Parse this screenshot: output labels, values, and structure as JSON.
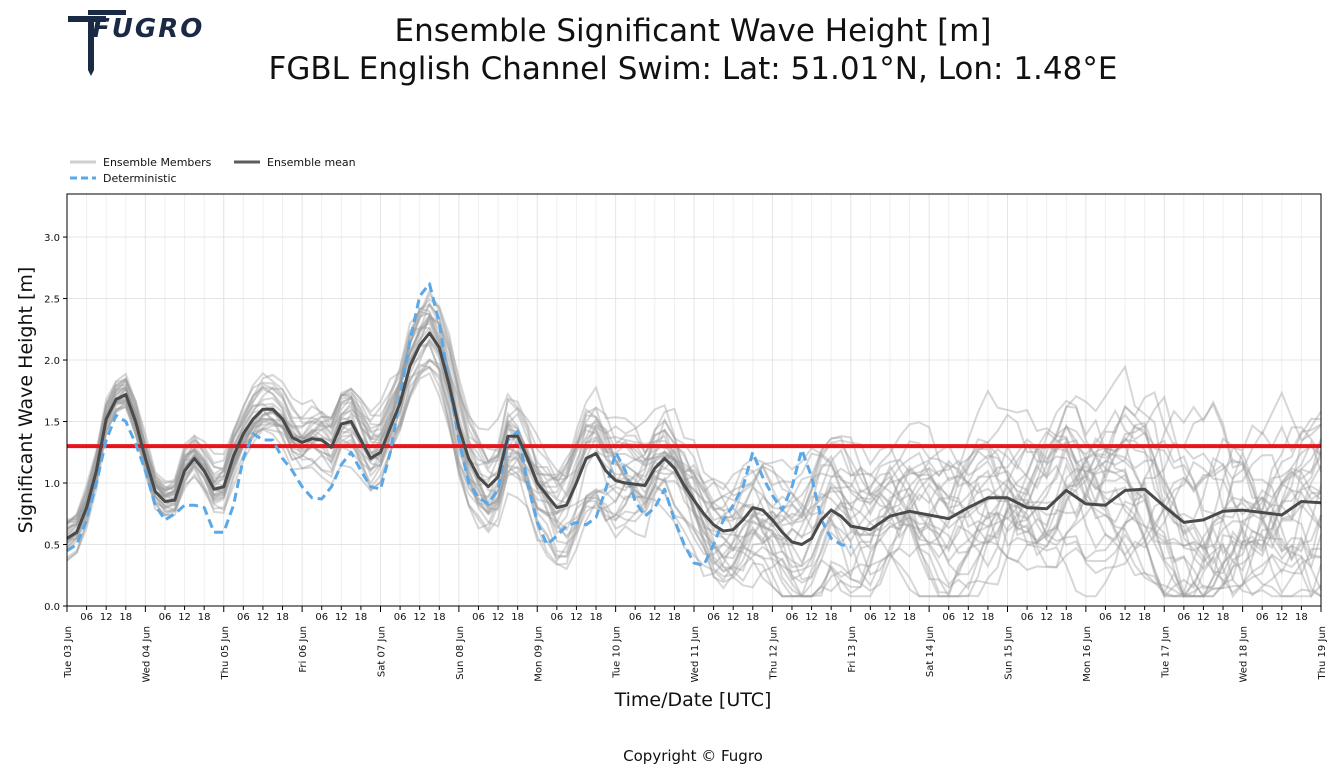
{
  "header": {
    "logo_text": "FUGRO",
    "title_line1": "Ensemble Significant Wave Height [m]",
    "title_line2": "FGBL English Channel Swim: Lat: 51.01°N, Lon: 1.48°E"
  },
  "footer": {
    "copyright": "Copyright © Fugro"
  },
  "colors": {
    "members": "#bdbdbd",
    "mean": "#4a4a4a",
    "deterministic": "#5aa8e8",
    "threshold": "#e8131b",
    "logo": "#1a2a44"
  },
  "chart_data": {
    "type": "line",
    "xlabel": "Time/Date [UTC]",
    "ylabel": "Significant Wave Height [m]",
    "ylim": [
      0,
      3.35
    ],
    "xlim_days": [
      0,
      16
    ],
    "y_ticks": [
      "0.0",
      "0.5",
      "1.0",
      "1.5",
      "2.0",
      "2.5",
      "3.0"
    ],
    "hour_ticks": [
      "06",
      "12",
      "18"
    ],
    "day_labels": [
      "Tue 03 Jun",
      "Wed 04 Jun",
      "Thu 05 Jun",
      "Fri 06 Jun",
      "Sat 07 Jun",
      "Sun 08 Jun",
      "Mon 09 Jun",
      "Tue 10 Jun",
      "Wed 11 Jun",
      "Thu 12 Jun",
      "Fri 13 Jun",
      "Sat 14 Jun",
      "Sun 15 Jun",
      "Mon 16 Jun",
      "Tue 17 Jun",
      "Wed 18 Jun",
      "Thu 19 Jun"
    ],
    "legend": {
      "placement": "top-left-outside",
      "members_label": "Ensemble Members",
      "mean_label": "Ensemble mean",
      "deterministic_label": "Deterministic"
    },
    "threshold": {
      "value": 1.3
    },
    "grid": true,
    "member_count": 30,
    "series": [
      {
        "name": "Ensemble mean",
        "x": [
          0,
          0.125,
          0.25,
          0.375,
          0.5,
          0.625,
          0.75,
          0.875,
          1.0,
          1.125,
          1.25,
          1.375,
          1.5,
          1.625,
          1.75,
          1.875,
          2.0,
          2.125,
          2.25,
          2.375,
          2.5,
          2.625,
          2.75,
          2.875,
          3.0,
          3.125,
          3.25,
          3.375,
          3.5,
          3.625,
          3.75,
          3.875,
          4.0,
          4.125,
          4.25,
          4.375,
          4.5,
          4.625,
          4.75,
          4.875,
          5.0,
          5.125,
          5.25,
          5.375,
          5.5,
          5.625,
          5.75,
          5.875,
          6.0,
          6.125,
          6.25,
          6.375,
          6.5,
          6.625,
          6.75,
          6.875,
          7.0,
          7.125,
          7.25,
          7.375,
          7.5,
          7.625,
          7.75,
          7.875,
          8.0,
          8.125,
          8.25,
          8.375,
          8.5,
          8.625,
          8.75,
          8.875,
          9.0,
          9.125,
          9.25,
          9.375,
          9.5,
          9.625,
          9.75,
          9.875,
          10.0,
          10.25,
          10.5,
          10.75,
          11.0,
          11.25,
          11.5,
          11.75,
          12.0,
          12.25,
          12.5,
          12.75,
          13.0,
          13.25,
          13.5,
          13.75,
          14.0,
          14.25,
          14.5,
          14.75,
          15.0,
          15.25,
          15.5,
          15.75,
          16.0
        ],
        "y": [
          0.55,
          0.6,
          0.8,
          1.1,
          1.52,
          1.68,
          1.72,
          1.5,
          1.2,
          0.93,
          0.85,
          0.86,
          1.1,
          1.2,
          1.1,
          0.95,
          0.97,
          1.22,
          1.4,
          1.52,
          1.6,
          1.6,
          1.52,
          1.37,
          1.33,
          1.36,
          1.35,
          1.29,
          1.48,
          1.5,
          1.35,
          1.2,
          1.25,
          1.45,
          1.65,
          1.95,
          2.12,
          2.22,
          2.1,
          1.8,
          1.45,
          1.2,
          1.05,
          0.97,
          1.05,
          1.38,
          1.38,
          1.2,
          1.0,
          0.9,
          0.8,
          0.82,
          1.0,
          1.2,
          1.24,
          1.1,
          1.02,
          1.0,
          0.99,
          0.98,
          1.12,
          1.2,
          1.12,
          0.98,
          0.86,
          0.75,
          0.66,
          0.61,
          0.62,
          0.7,
          0.8,
          0.78,
          0.7,
          0.6,
          0.52,
          0.5,
          0.55,
          0.7,
          0.78,
          0.73,
          0.65,
          0.62,
          0.73,
          0.77,
          0.74,
          0.71,
          0.8,
          0.88,
          0.88,
          0.8,
          0.79,
          0.94,
          0.83,
          0.82,
          0.94,
          0.95,
          0.81,
          0.68,
          0.7,
          0.77,
          0.78,
          0.76,
          0.74,
          0.85,
          0.84
        ]
      },
      {
        "name": "Deterministic",
        "x": [
          0,
          0.125,
          0.25,
          0.375,
          0.5,
          0.625,
          0.75,
          0.875,
          1.0,
          1.125,
          1.25,
          1.375,
          1.5,
          1.625,
          1.75,
          1.875,
          2.0,
          2.125,
          2.25,
          2.375,
          2.5,
          2.625,
          2.75,
          2.875,
          3.0,
          3.125,
          3.25,
          3.375,
          3.5,
          3.625,
          3.75,
          3.875,
          4.0,
          4.125,
          4.25,
          4.375,
          4.5,
          4.625,
          4.75,
          4.875,
          5.0,
          5.125,
          5.25,
          5.375,
          5.5,
          5.625,
          5.75,
          5.875,
          6.0,
          6.125,
          6.25,
          6.375,
          6.5,
          6.625,
          6.75,
          6.875,
          7.0,
          7.125,
          7.25,
          7.375,
          7.5,
          7.625,
          7.75,
          7.875,
          8.0,
          8.125,
          8.25,
          8.375,
          8.5,
          8.625,
          8.75,
          8.875,
          9.0,
          9.125,
          9.25,
          9.375,
          9.5,
          9.625,
          9.75,
          9.875,
          10.0
        ],
        "y": [
          0.45,
          0.5,
          0.7,
          1.0,
          1.35,
          1.55,
          1.5,
          1.32,
          1.1,
          0.82,
          0.7,
          0.75,
          0.82,
          0.82,
          0.8,
          0.6,
          0.6,
          0.82,
          1.2,
          1.4,
          1.35,
          1.35,
          1.2,
          1.1,
          0.97,
          0.88,
          0.87,
          0.97,
          1.15,
          1.25,
          1.1,
          0.97,
          0.95,
          1.25,
          1.7,
          2.15,
          2.52,
          2.62,
          2.3,
          1.8,
          1.35,
          1.0,
          0.88,
          0.83,
          0.95,
          1.35,
          1.42,
          1.0,
          0.68,
          0.5,
          0.57,
          0.65,
          0.68,
          0.66,
          0.72,
          0.95,
          1.25,
          1.1,
          0.85,
          0.73,
          0.8,
          0.95,
          0.7,
          0.5,
          0.35,
          0.33,
          0.5,
          0.7,
          0.82,
          0.97,
          1.25,
          1.05,
          0.9,
          0.78,
          0.97,
          1.27,
          1.05,
          0.7,
          0.55,
          0.5,
          0.48
        ]
      }
    ]
  }
}
